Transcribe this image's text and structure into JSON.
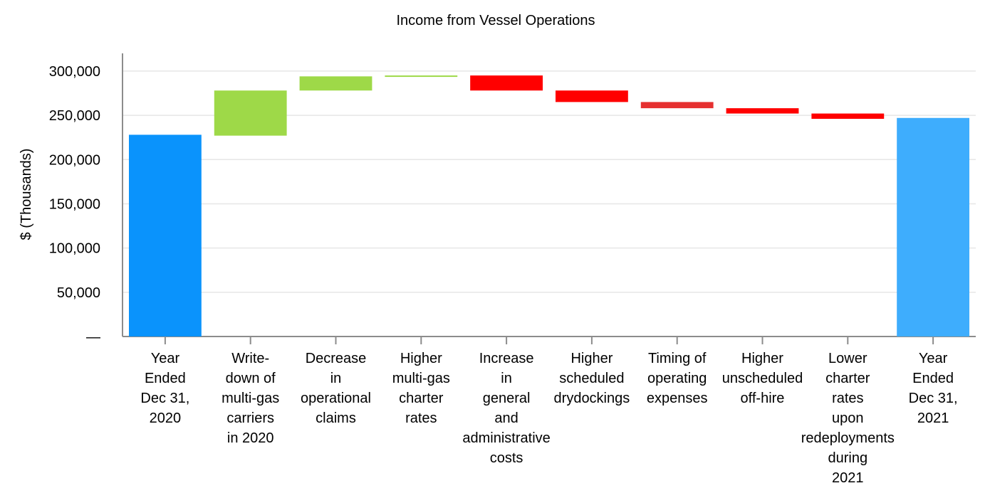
{
  "chart_data": {
    "type": "bar",
    "subtype": "waterfall",
    "title": "Income from Vessel Operations",
    "xlabel": "",
    "ylabel": "$ (Thousands)",
    "ylim": [
      0,
      320000
    ],
    "yticks": [
      0,
      50000,
      100000,
      150000,
      200000,
      250000,
      300000
    ],
    "ytick_labels": [
      "—",
      "50,000",
      "100,000",
      "150,000",
      "200,000",
      "250,000",
      "300,000"
    ],
    "grid": true,
    "legend": "none",
    "categories": [
      [
        "Year",
        "Ended",
        "Dec 31,",
        "2020"
      ],
      [
        "Write-",
        "down of",
        "multi-gas",
        "carriers",
        "in 2020"
      ],
      [
        "Decrease",
        "in",
        "operational",
        "claims"
      ],
      [
        "Higher",
        "multi-gas",
        "charter",
        "rates"
      ],
      [
        "Increase",
        "in",
        "general",
        "and",
        "administrative",
        "costs"
      ],
      [
        "Higher",
        "scheduled",
        "drydockings"
      ],
      [
        "Timing of",
        "operating",
        "expenses"
      ],
      [
        "Higher",
        "unscheduled",
        "off-hire"
      ],
      [
        "Lower",
        "charter",
        "rates",
        "upon",
        "redeployments",
        "during",
        "2021"
      ],
      [
        "Year",
        "Ended",
        "Dec 31,",
        "2021"
      ]
    ],
    "bars": [
      {
        "kind": "total",
        "start": 0,
        "end": 228000,
        "color": "#0a93fc"
      },
      {
        "kind": "increase",
        "start": 227000,
        "end": 278000,
        "color": "#9ed948"
      },
      {
        "kind": "increase",
        "start": 278000,
        "end": 294000,
        "color": "#9ed948"
      },
      {
        "kind": "increase",
        "start": 294000,
        "end": 295000,
        "color": "#9ed948"
      },
      {
        "kind": "decrease",
        "start": 295000,
        "end": 278000,
        "color": "#ff0000"
      },
      {
        "kind": "decrease",
        "start": 278000,
        "end": 265000,
        "color": "#ff0000"
      },
      {
        "kind": "decrease",
        "start": 265000,
        "end": 258000,
        "color": "#e63030"
      },
      {
        "kind": "decrease",
        "start": 258000,
        "end": 252000,
        "color": "#ff0000"
      },
      {
        "kind": "decrease",
        "start": 252000,
        "end": 246000,
        "color": "#ff0000"
      },
      {
        "kind": "total",
        "start": 0,
        "end": 247000,
        "color": "#3ead fd"
      }
    ]
  }
}
